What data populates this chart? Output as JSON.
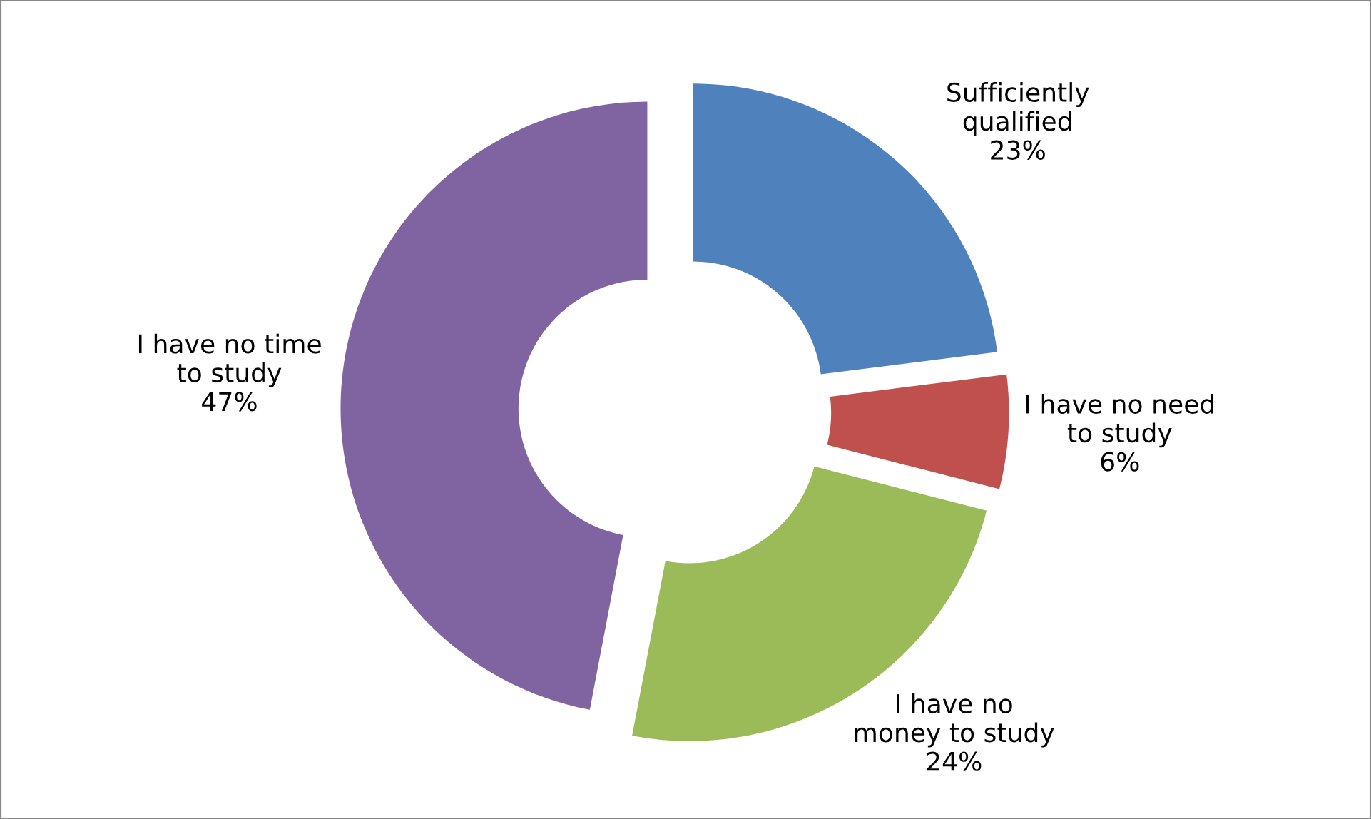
{
  "chart_data": {
    "type": "donut",
    "categories": [
      "Sufficiently\nqualified",
      "I have no need\nto study",
      "I have no\nmoney to study",
      "I have no time\nto study"
    ],
    "values": [
      23,
      6,
      24,
      47
    ],
    "value_labels": [
      "23%",
      "6%",
      "24%",
      "47%"
    ],
    "colors": [
      "#4f81bd",
      "#c0504d",
      "#9bbb59",
      "#8064a2"
    ],
    "legend": false
  }
}
